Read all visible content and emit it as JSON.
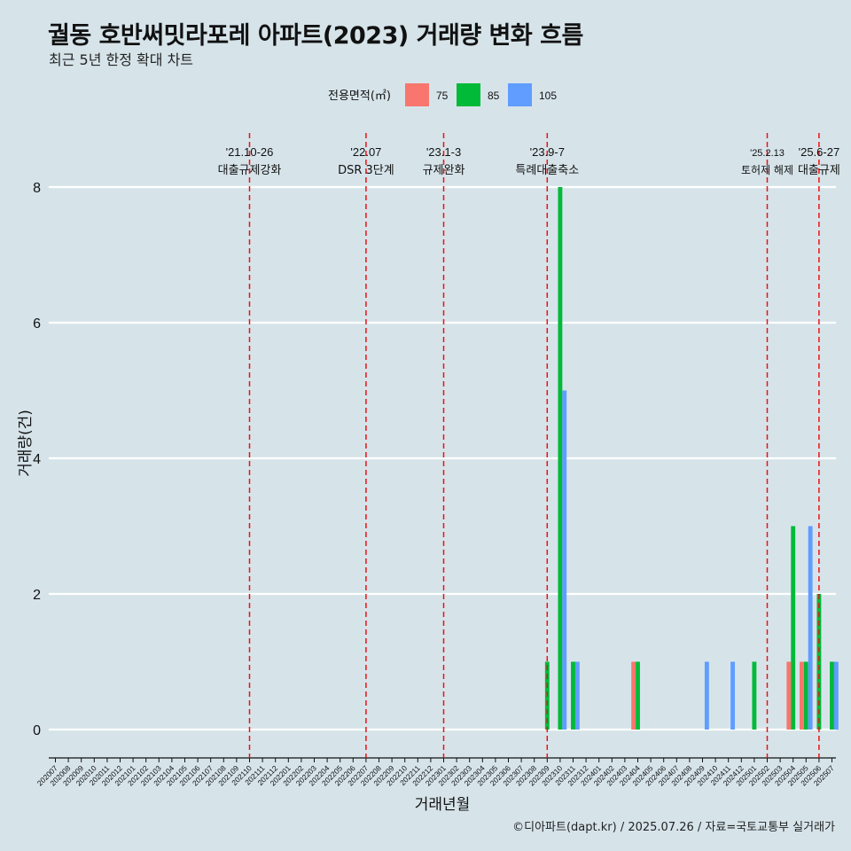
{
  "title": "궐동 호반써밋라포레 아파트(2023) 거래량 변화 흐름",
  "subtitle": "최근 5년 한정 확대 차트",
  "caption": "©디아파트(dapt.kr) / 2025.07.26 / 자료=국토교통부 실거래가",
  "chart_data": {
    "type": "bar",
    "xlabel": "거래년월",
    "ylabel": "거래량(건)",
    "ylim": [
      0,
      8
    ],
    "yticks": [
      0,
      2,
      4,
      6,
      8
    ],
    "grid": true,
    "legend": {
      "title": "전용면적(㎡)",
      "position": "top",
      "items": [
        {
          "label": "75",
          "color": "#f8766d"
        },
        {
          "label": "85",
          "color": "#00ba38"
        },
        {
          "label": "105",
          "color": "#619cff"
        }
      ]
    },
    "categories": [
      "202007",
      "202008",
      "202009",
      "202010",
      "202011",
      "202012",
      "202101",
      "202102",
      "202103",
      "202104",
      "202105",
      "202106",
      "202107",
      "202108",
      "202109",
      "202110",
      "202111",
      "202112",
      "202201",
      "202202",
      "202203",
      "202204",
      "202205",
      "202206",
      "202207",
      "202208",
      "202209",
      "202210",
      "202211",
      "202212",
      "202301",
      "202302",
      "202303",
      "202304",
      "202305",
      "202306",
      "202307",
      "202308",
      "202309",
      "202310",
      "202311",
      "202312",
      "202401",
      "202402",
      "202403",
      "202404",
      "202405",
      "202406",
      "202407",
      "202408",
      "202409",
      "202410",
      "202411",
      "202412",
      "202501",
      "202502",
      "202503",
      "202504",
      "202505",
      "202506",
      "202507"
    ],
    "series": [
      {
        "name": "75",
        "color": "#f8766d",
        "points": [
          {
            "month": "202404",
            "value": 1
          },
          {
            "month": "202504",
            "value": 1
          },
          {
            "month": "202505",
            "value": 1
          }
        ]
      },
      {
        "name": "85",
        "color": "#00ba38",
        "points": [
          {
            "month": "202309",
            "value": 1
          },
          {
            "month": "202310",
            "value": 8
          },
          {
            "month": "202311",
            "value": 1
          },
          {
            "month": "202404",
            "value": 1
          },
          {
            "month": "202501",
            "value": 1
          },
          {
            "month": "202504",
            "value": 3
          },
          {
            "month": "202505",
            "value": 1
          },
          {
            "month": "202506",
            "value": 2
          },
          {
            "month": "202507",
            "value": 1
          }
        ]
      },
      {
        "name": "105",
        "color": "#619cff",
        "points": [
          {
            "month": "202310",
            "value": 5
          },
          {
            "month": "202311",
            "value": 1
          },
          {
            "month": "202409",
            "value": 1
          },
          {
            "month": "202411",
            "value": 1
          },
          {
            "month": "202505",
            "value": 3
          },
          {
            "month": "202507",
            "value": 1
          }
        ]
      }
    ],
    "annotations": [
      {
        "month": "202110",
        "date": "'21.10-26",
        "text": "대출규제강화"
      },
      {
        "month": "202207",
        "date": "'22.07",
        "text": "DSR 3단계"
      },
      {
        "month": "202301",
        "date": "'23.1-3",
        "text": "규제완화"
      },
      {
        "month": "202309",
        "date": "'23.9-7",
        "text": "특례대출축소"
      },
      {
        "month": "202502",
        "date": "'25.2.13",
        "text": "토허제 해제",
        "small": true
      },
      {
        "month": "202506",
        "date": "'25.6-27",
        "text": "대출규제"
      }
    ]
  }
}
